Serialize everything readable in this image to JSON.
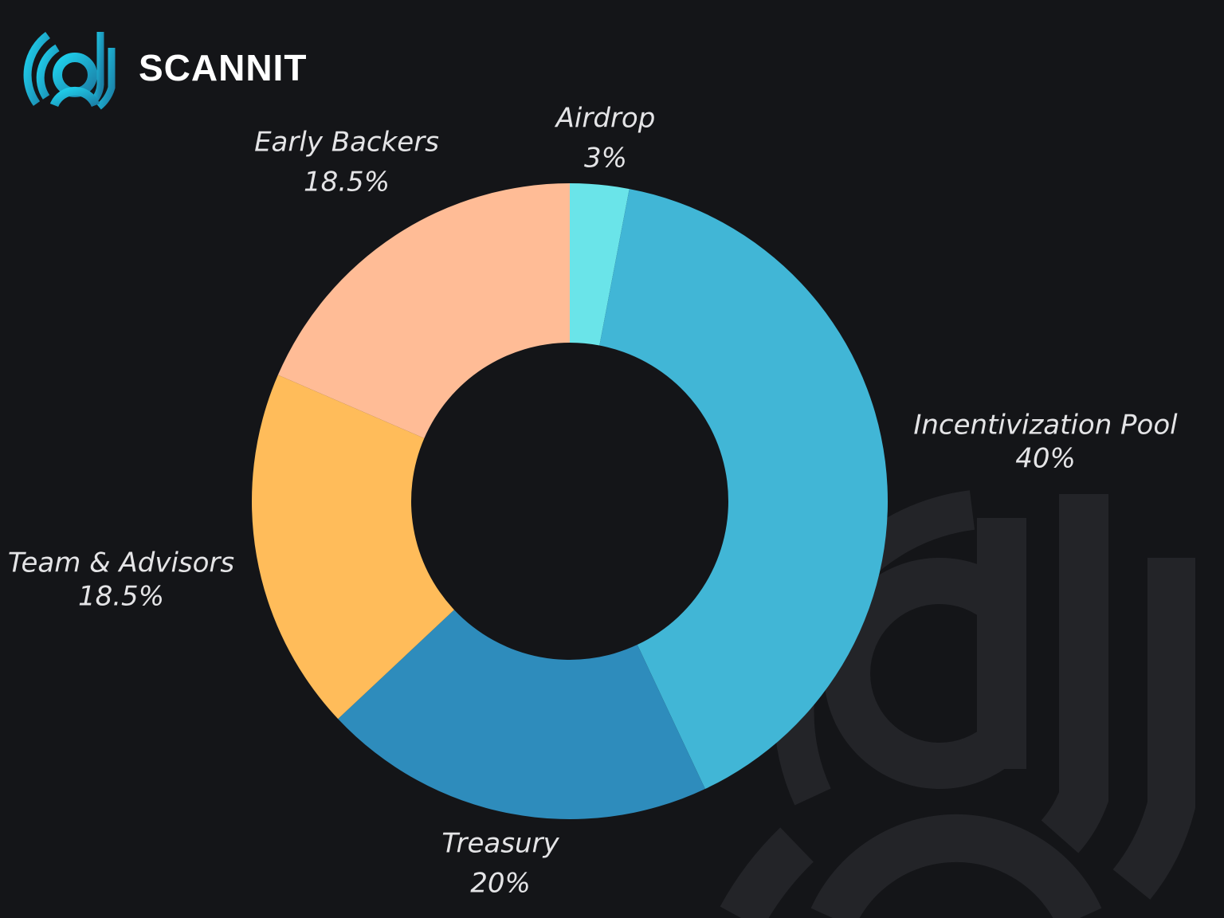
{
  "brand": {
    "name": "SCANNIT",
    "logo_icon": "scannit-logo-icon"
  },
  "colors": {
    "background": "#141518",
    "watermark": "#232428",
    "logo_gradient_start": "#1fd2ee",
    "logo_gradient_end": "#1b7fa6"
  },
  "chart_data": {
    "type": "pie",
    "style": "donut",
    "start_angle_deg": 0,
    "direction": "clockwise",
    "categories": [
      "Airdrop",
      "Incentivization Pool",
      "Treasury",
      "Team & Advisors",
      "Early Backers"
    ],
    "values": [
      3,
      40,
      20,
      18.5,
      18.5
    ],
    "value_labels": [
      "3%",
      "40%",
      "20%",
      "18.5%",
      "18.5%"
    ],
    "colors": [
      "#6ae4e9",
      "#41b6d6",
      "#2e8cbc",
      "#ffbc5a",
      "#ffbc96"
    ],
    "legend": "none"
  }
}
